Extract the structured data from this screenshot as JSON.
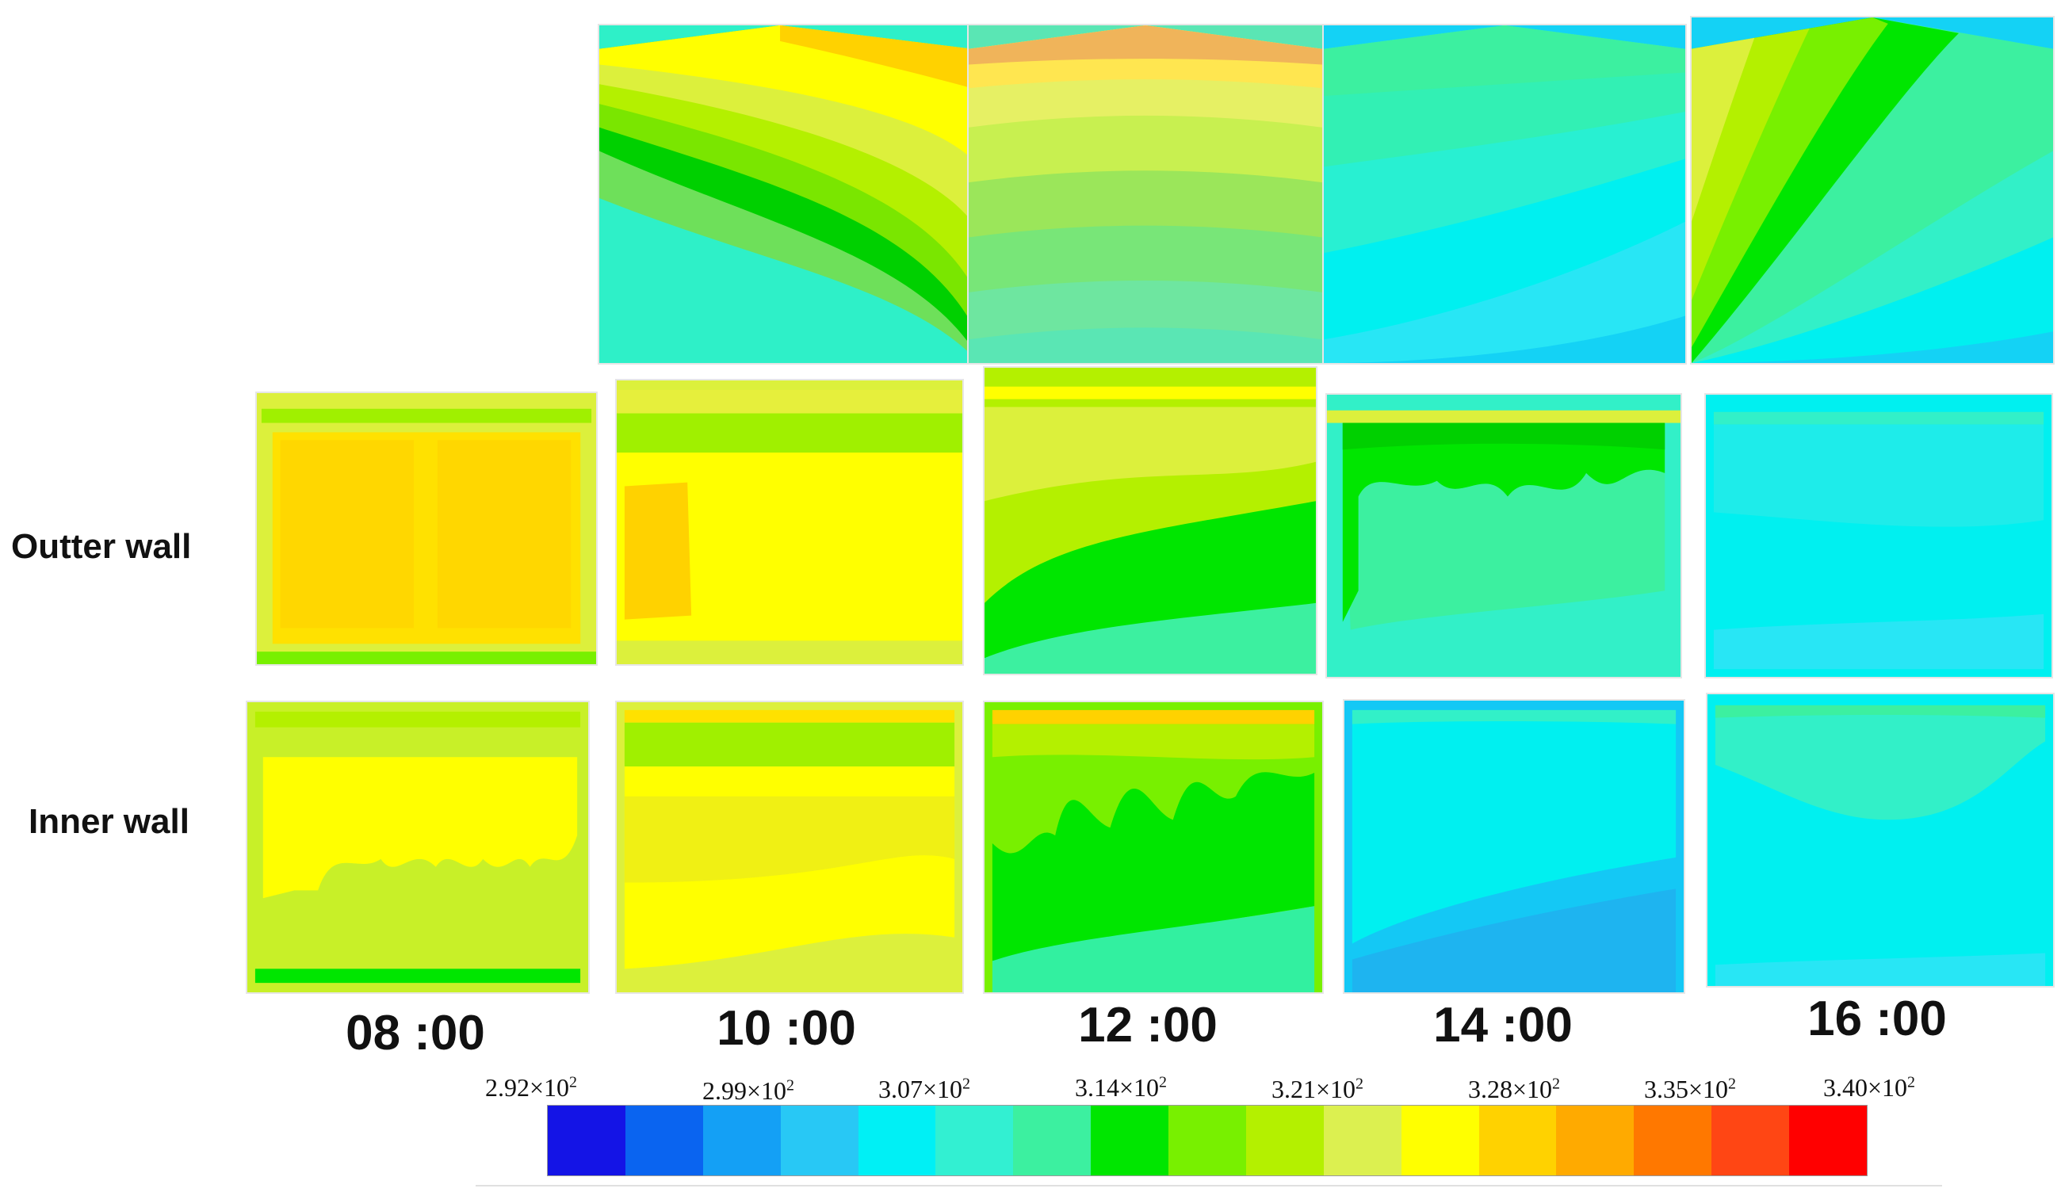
{
  "rows": {
    "outer": "Outter wall",
    "inner": "Inner wall"
  },
  "times": [
    "08 :00",
    "10 :00",
    "12 :00",
    "14 :00",
    "16 :00"
  ],
  "colorbar": {
    "ticks": [
      {
        "mant": "2.92",
        "exp": "2"
      },
      {
        "mant": "2.99",
        "exp": "2"
      },
      {
        "mant": "3.07",
        "exp": "2"
      },
      {
        "mant": "3.14",
        "exp": "2"
      },
      {
        "mant": "3.21",
        "exp": "2"
      },
      {
        "mant": "3.28",
        "exp": "2"
      },
      {
        "mant": "3.35",
        "exp": "2"
      },
      {
        "mant": "3.40",
        "exp": "2"
      }
    ],
    "times_sym": "×10",
    "colors": [
      "#1414e6",
      "#0a64f0",
      "#14a0f5",
      "#28c8f5",
      "#00f0f5",
      "#32f0d2",
      "#3cf0a0",
      "#00e600",
      "#78f000",
      "#b4f000",
      "#dcf050",
      "#ffff00",
      "#ffd200",
      "#ffaa00",
      "#ff7800",
      "#ff4614",
      "#ff0000"
    ]
  },
  "accent": "#ffff00"
}
